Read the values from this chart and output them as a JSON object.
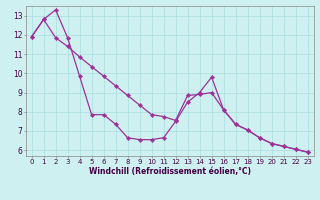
{
  "xlabel": "Windchill (Refroidissement éolien,°C)",
  "background_color": "#cff0f0",
  "line_color": "#993399",
  "grid_color": "#aadddd",
  "xlim": [
    -0.5,
    23.5
  ],
  "ylim": [
    5.7,
    13.5
  ],
  "yticks": [
    6,
    7,
    8,
    9,
    10,
    11,
    12,
    13
  ],
  "xticks": [
    0,
    1,
    2,
    3,
    4,
    5,
    6,
    7,
    8,
    9,
    10,
    11,
    12,
    13,
    14,
    15,
    16,
    17,
    18,
    19,
    20,
    21,
    22,
    23
  ],
  "series1_x": [
    0,
    1,
    2,
    3,
    4,
    5,
    6,
    7,
    8,
    9,
    10,
    11,
    12,
    13,
    14,
    15,
    16,
    17,
    18,
    19,
    20,
    21,
    22,
    23
  ],
  "series1_y": [
    11.9,
    12.8,
    13.3,
    11.85,
    9.85,
    7.85,
    7.85,
    7.35,
    6.65,
    6.55,
    6.55,
    6.65,
    7.5,
    8.5,
    9.0,
    9.8,
    8.1,
    7.35,
    7.05,
    6.65,
    6.35,
    6.2,
    6.05,
    5.9
  ],
  "series2_x": [
    0,
    1,
    2,
    3,
    4,
    5,
    6,
    7,
    8,
    9,
    10,
    11,
    12,
    13,
    14,
    15,
    16,
    17,
    18,
    19,
    20,
    21,
    22,
    23
  ],
  "series2_y": [
    11.9,
    12.8,
    11.85,
    11.4,
    10.85,
    10.35,
    9.85,
    9.35,
    8.85,
    8.35,
    7.85,
    7.75,
    7.55,
    8.85,
    8.9,
    9.0,
    8.1,
    7.35,
    7.05,
    6.65,
    6.35,
    6.2,
    6.05,
    5.9
  ],
  "tick_fontsize": 5.0,
  "xlabel_fontsize": 5.5,
  "marker_size": 2.2,
  "line_width": 0.9
}
